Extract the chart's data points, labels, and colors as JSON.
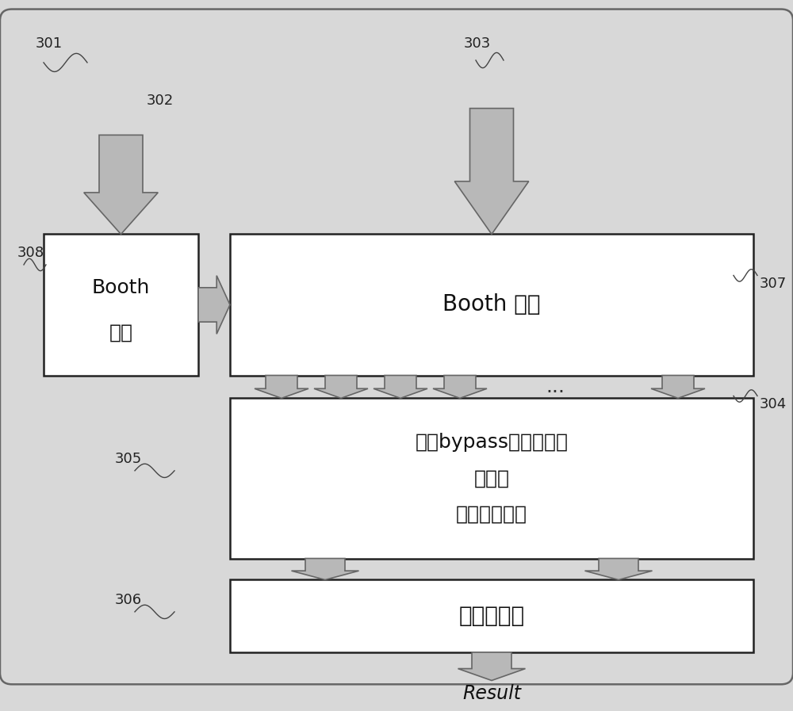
{
  "bg_color": "#d8d8d8",
  "inner_bg": "#d8d8d8",
  "box_fill": "#ffffff",
  "box_edge": "#222222",
  "arrow_fill": "#b8b8b8",
  "arrow_edge": "#666666",
  "label_color": "#222222",
  "booth_encode_text1": "Booth",
  "booth_encode_text2": "编码",
  "booth_decode_text": "Booth 译码",
  "partial_product_text1": "基于bypass全加器和半",
  "partial_product_text2": "加器的",
  "partial_product_text3": "部分积压缩树",
  "fast_adder_text": "快速加法器",
  "result_text": "Result",
  "label_301": "301",
  "label_302": "302",
  "label_303": "303",
  "label_304": "304",
  "label_305": "305",
  "label_306": "306",
  "label_307": "307",
  "label_308": "308"
}
